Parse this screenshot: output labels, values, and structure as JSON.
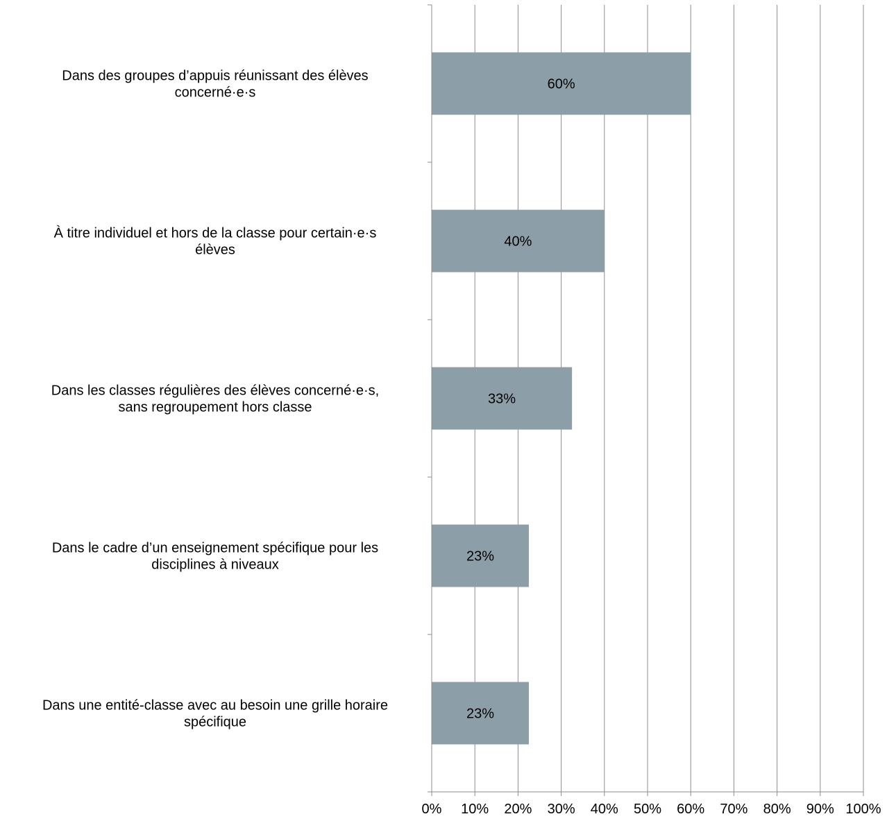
{
  "chart_data": {
    "type": "bar",
    "orientation": "horizontal",
    "categories": [
      [
        "Dans des groupes d’appuis réunissant des élèves",
        "concerné·e·s"
      ],
      [
        "À titre individuel et hors de la classe pour certain·e·s",
        "élèves"
      ],
      [
        "Dans les classes régulières des élèves concerné·e·s,",
        "sans regroupement hors classe"
      ],
      [
        "Dans le cadre d’un enseignement spécifique pour les",
        "disciplines à niveaux"
      ],
      [
        "Dans une entité-classe avec au besoin une grille horaire",
        "spécifique"
      ]
    ],
    "values": [
      60,
      40,
      32.5,
      22.5,
      22.5
    ],
    "data_labels": [
      "60%",
      "40%",
      "33%",
      "23%",
      "23%"
    ],
    "xlim": [
      0,
      100
    ],
    "x_ticks": [
      "0%",
      "10%",
      "20%",
      "30%",
      "40%",
      "50%",
      "60%",
      "70%",
      "80%",
      "90%",
      "100%"
    ],
    "grid": "vertical",
    "legend": "none",
    "bar_color": "#8c9ea8",
    "grid_color": "#8c8c8c"
  }
}
